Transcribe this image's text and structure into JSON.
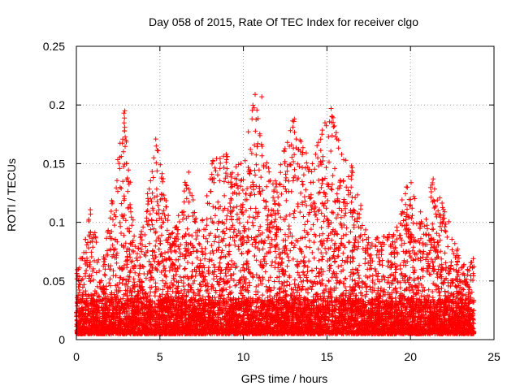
{
  "chart_data": {
    "type": "scatter",
    "title": "Day 058 of 2015, Rate Of TEC Index for receiver clgo",
    "xlabel": "GPS time / hours",
    "ylabel": "ROTI / TECUs",
    "xlim": [
      0,
      25
    ],
    "ylim": [
      0,
      0.25
    ],
    "x_ticks": [
      0,
      5,
      10,
      15,
      20,
      25
    ],
    "y_ticks": [
      0,
      0.05,
      0.1,
      0.15,
      0.2,
      0.25
    ],
    "x_tick_labels": [
      "0",
      "5",
      "10",
      "15",
      "20",
      "25"
    ],
    "y_tick_labels": [
      "0",
      "0.05",
      "0.1",
      "0.15",
      "0.2",
      "0.25"
    ],
    "grid": true,
    "marker": "+",
    "color": "#ff0000",
    "x_range_of_data": [
      0,
      23.8
    ],
    "envelope": [
      {
        "x": 0.0,
        "ymax": 0.06
      },
      {
        "x": 0.6,
        "ymax": 0.09
      },
      {
        "x": 0.8,
        "ymax": 0.12
      },
      {
        "x": 1.5,
        "ymax": 0.06
      },
      {
        "x": 2.9,
        "ymax": 0.195
      },
      {
        "x": 3.6,
        "ymax": 0.07
      },
      {
        "x": 4.8,
        "ymax": 0.17
      },
      {
        "x": 5.8,
        "ymax": 0.09
      },
      {
        "x": 6.7,
        "ymax": 0.15
      },
      {
        "x": 7.4,
        "ymax": 0.09
      },
      {
        "x": 8.2,
        "ymax": 0.16
      },
      {
        "x": 9.0,
        "ymax": 0.16
      },
      {
        "x": 9.8,
        "ymax": 0.15
      },
      {
        "x": 10.7,
        "ymax": 0.21
      },
      {
        "x": 11.4,
        "ymax": 0.15
      },
      {
        "x": 12.0,
        "ymax": 0.14
      },
      {
        "x": 13.0,
        "ymax": 0.19
      },
      {
        "x": 14.0,
        "ymax": 0.15
      },
      {
        "x": 15.2,
        "ymax": 0.2
      },
      {
        "x": 15.7,
        "ymax": 0.17
      },
      {
        "x": 16.3,
        "ymax": 0.16
      },
      {
        "x": 17.5,
        "ymax": 0.09
      },
      {
        "x": 19.0,
        "ymax": 0.09
      },
      {
        "x": 19.6,
        "ymax": 0.13
      },
      {
        "x": 20.1,
        "ymax": 0.135
      },
      {
        "x": 20.9,
        "ymax": 0.1
      },
      {
        "x": 21.3,
        "ymax": 0.14
      },
      {
        "x": 22.6,
        "ymax": 0.09
      },
      {
        "x": 23.3,
        "ymax": 0.06
      },
      {
        "x": 23.8,
        "ymax": 0.07
      }
    ],
    "highlights": [
      {
        "x": 2.9,
        "y": 0.195
      },
      {
        "x": 2.85,
        "y": 0.193
      },
      {
        "x": 2.9,
        "y": 0.181
      },
      {
        "x": 2.88,
        "y": 0.178
      },
      {
        "x": 4.75,
        "y": 0.171
      },
      {
        "x": 4.78,
        "y": 0.165
      },
      {
        "x": 10.7,
        "y": 0.209
      },
      {
        "x": 11.1,
        "y": 0.207
      },
      {
        "x": 13.05,
        "y": 0.188
      },
      {
        "x": 13.02,
        "y": 0.186
      },
      {
        "x": 15.25,
        "y": 0.197
      },
      {
        "x": 15.3,
        "y": 0.19
      },
      {
        "x": 14.7,
        "y": 0.175
      },
      {
        "x": 15.7,
        "y": 0.17
      }
    ]
  }
}
